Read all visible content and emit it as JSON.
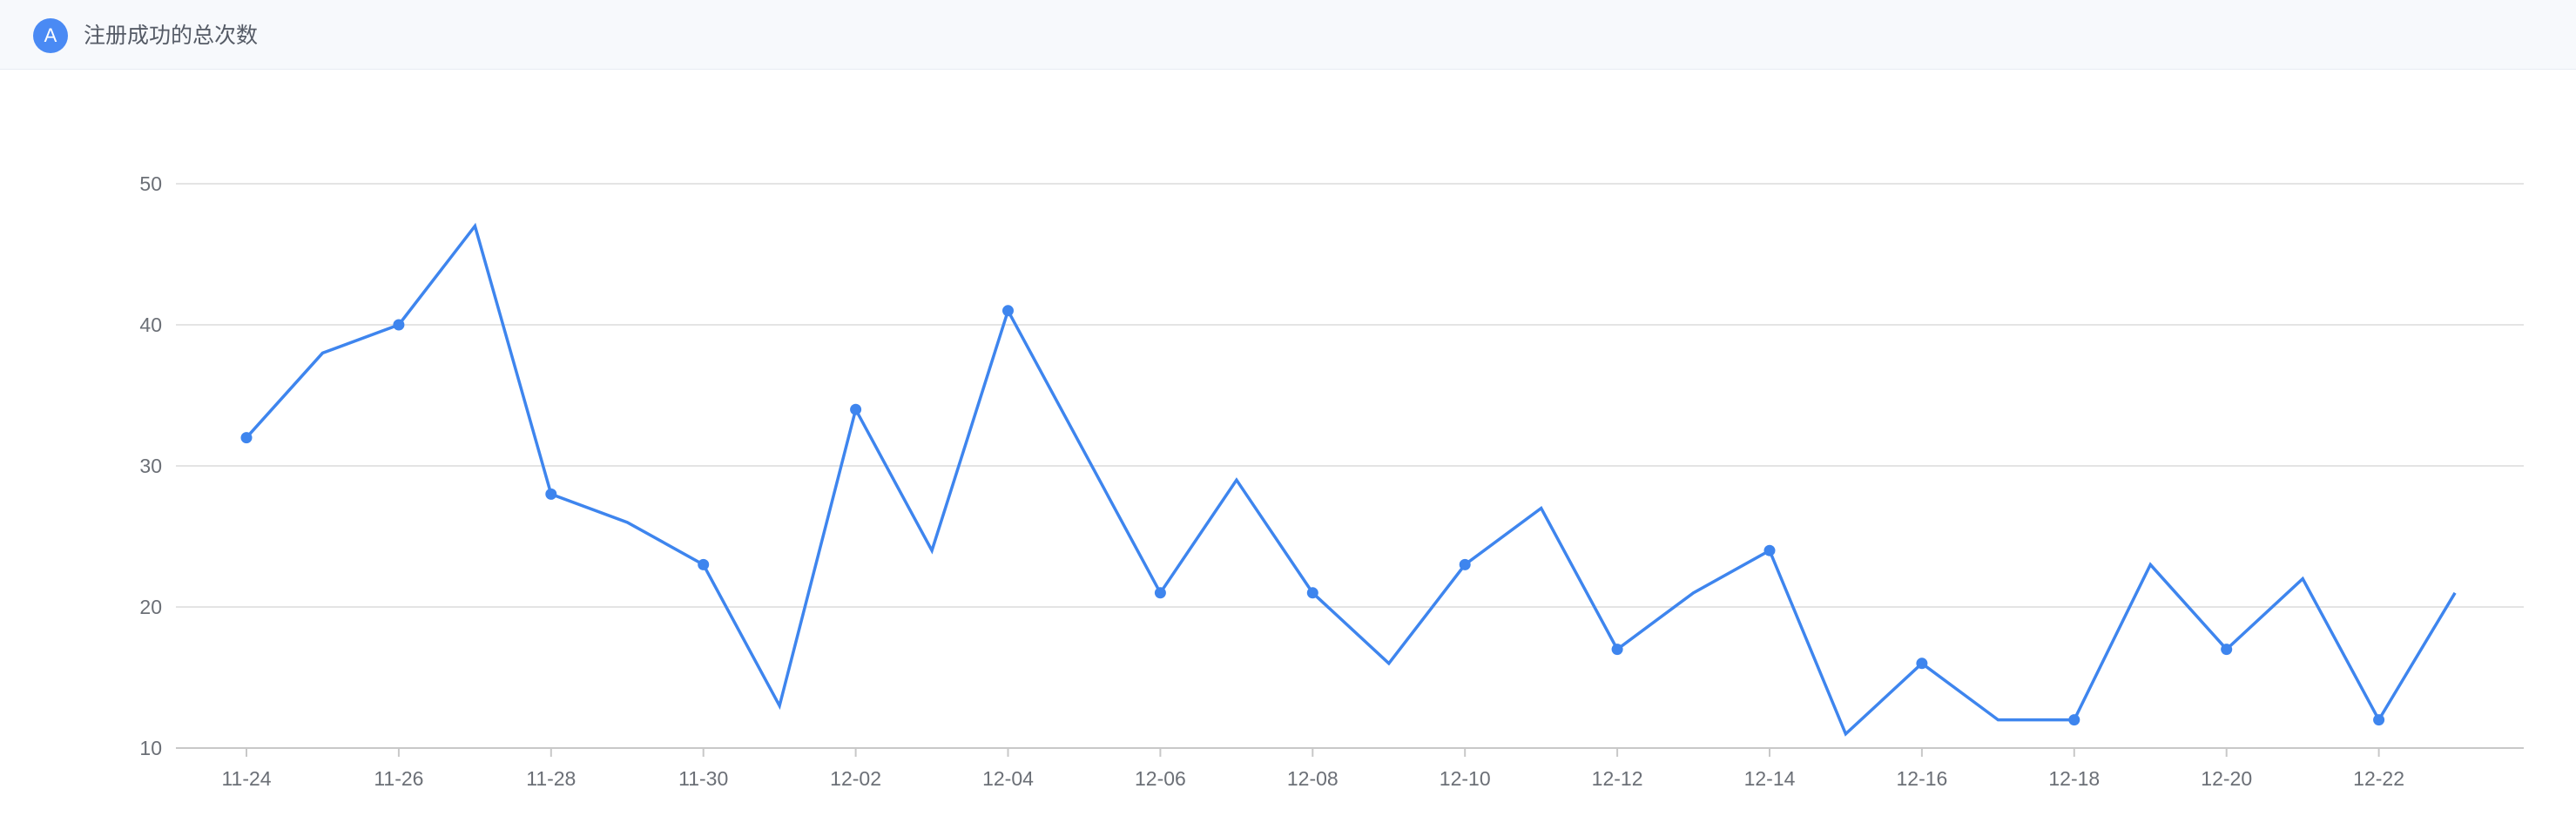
{
  "header": {
    "badge": "A",
    "title": "注册成功的总次数"
  },
  "colors": {
    "series": "#3e85ee",
    "grid": "#dcdcdc",
    "axis": "#c8c8c8",
    "header_bg": "#f7f9fc"
  },
  "chart_data": {
    "type": "line",
    "title": "注册成功的总次数",
    "xlabel": "",
    "ylabel": "",
    "ylim": [
      10,
      50
    ],
    "yticks": [
      10,
      20,
      30,
      40,
      50
    ],
    "grid": true,
    "x": [
      "11-24",
      "11-25",
      "11-26",
      "11-27",
      "11-28",
      "11-29",
      "11-30",
      "12-01",
      "12-02",
      "12-03",
      "12-04",
      "12-05",
      "12-06",
      "12-07",
      "12-08",
      "12-09",
      "12-10",
      "12-11",
      "12-12",
      "12-13",
      "12-14",
      "12-15",
      "12-16",
      "12-17",
      "12-18",
      "12-19",
      "12-20",
      "12-21",
      "12-22",
      "12-23"
    ],
    "xtick_labels": [
      "11-24",
      "11-26",
      "11-28",
      "11-30",
      "12-02",
      "12-04",
      "12-06",
      "12-08",
      "12-10",
      "12-12",
      "12-14",
      "12-16",
      "12-18",
      "12-20",
      "12-22"
    ],
    "series": [
      {
        "values": [
          32,
          38,
          40,
          47,
          28,
          26,
          23,
          13,
          34,
          24,
          41,
          31,
          21,
          29,
          21,
          16,
          23,
          27,
          17,
          21,
          24,
          11,
          16,
          12,
          12,
          23,
          17,
          22,
          12,
          21
        ]
      }
    ]
  }
}
